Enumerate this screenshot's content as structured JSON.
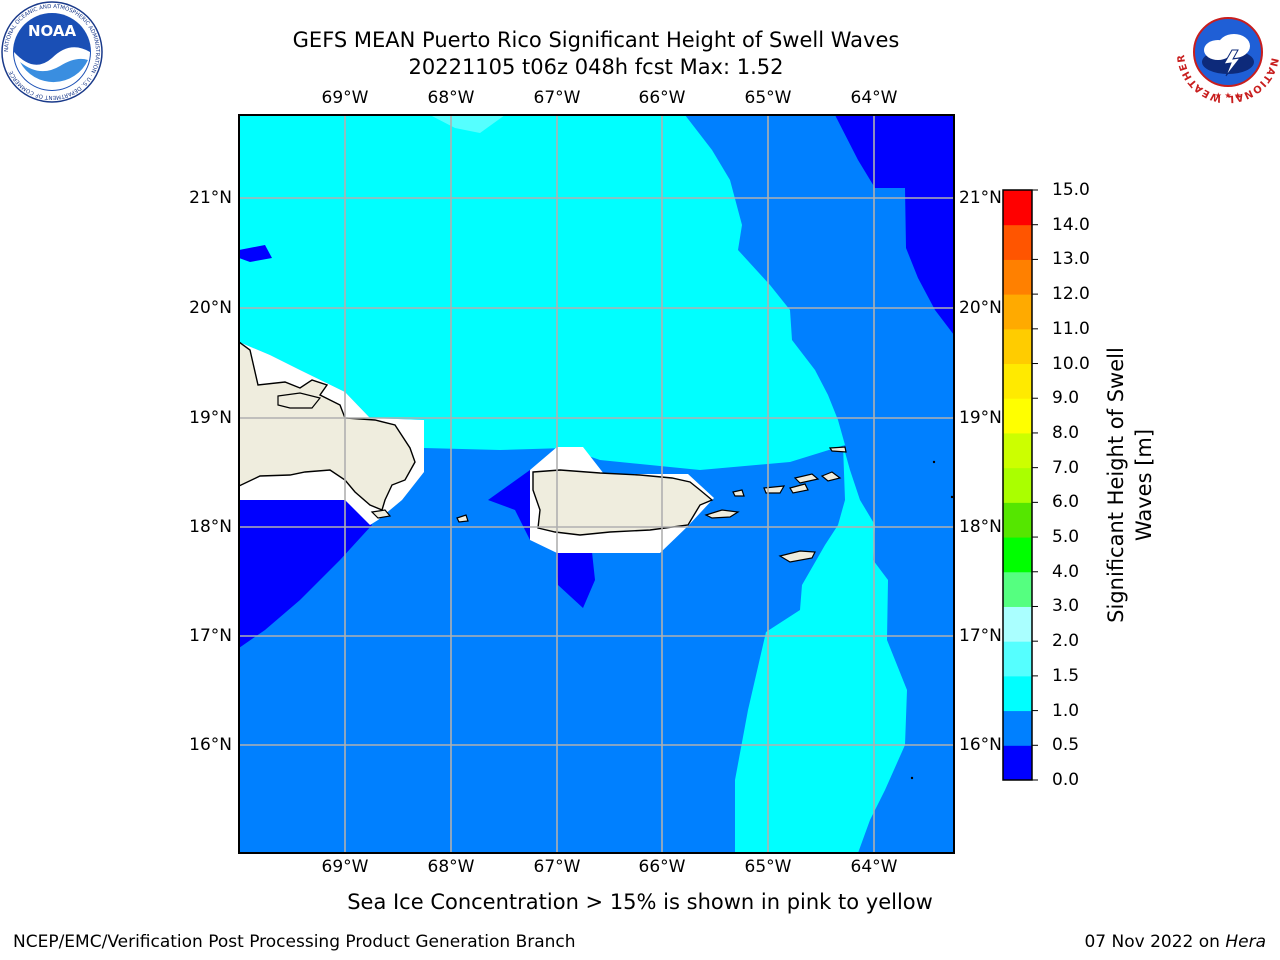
{
  "header": {
    "title_line1": "GEFS MEAN Puerto Rico Significant Height of Swell Waves",
    "title_line2": "20221105 t06z 048h fcst   Max: 1.52"
  },
  "logos": {
    "noaa_text": "NOAA",
    "noaa_ring_text": "NATIONAL OCEANIC AND ATMOSPHERIC ADMINISTRATION · U.S. DEPARTMENT OF COMMERCE",
    "nws_ring_text": "NATIONAL WEATHER SERVICE"
  },
  "map": {
    "lon_labels": [
      "69°W",
      "68°W",
      "67°W",
      "66°W",
      "65°W",
      "64°W"
    ],
    "lat_labels": [
      "21°N",
      "20°N",
      "19°N",
      "18°N",
      "17°N",
      "16°N"
    ],
    "extent": {
      "lon_min": -70.0,
      "lon_max": -63.25,
      "lat_min": 15.0,
      "lat_max": 21.75
    },
    "land_color": "#efedde",
    "grid_color": "#b0b0b0"
  },
  "colorbar": {
    "title": "Significant Height of Swell Waves [m]",
    "levels": [
      "0.0",
      "0.5",
      "1.0",
      "1.5",
      "2.0",
      "3.0",
      "4.0",
      "5.0",
      "6.0",
      "7.0",
      "8.0",
      "9.0",
      "10.0",
      "11.0",
      "12.0",
      "13.0",
      "14.0",
      "15.0"
    ],
    "colors": [
      "#0000ff",
      "#0080ff",
      "#00ffff",
      "#55ffff",
      "#aaffff",
      "#55ff80",
      "#00ff00",
      "#55e600",
      "#aaff00",
      "#ccff00",
      "#ffff00",
      "#ffea00",
      "#ffcc00",
      "#ffaa00",
      "#ff8000",
      "#ff5500",
      "#ff0000"
    ]
  },
  "footer": {
    "note": "Sea Ice Concentration > 15% is shown in pink to yellow",
    "left": "NCEP/EMC/Verification Post Processing Product Generation Branch",
    "right_prefix": "07 Nov 2022 on ",
    "right_host": "Hera"
  }
}
